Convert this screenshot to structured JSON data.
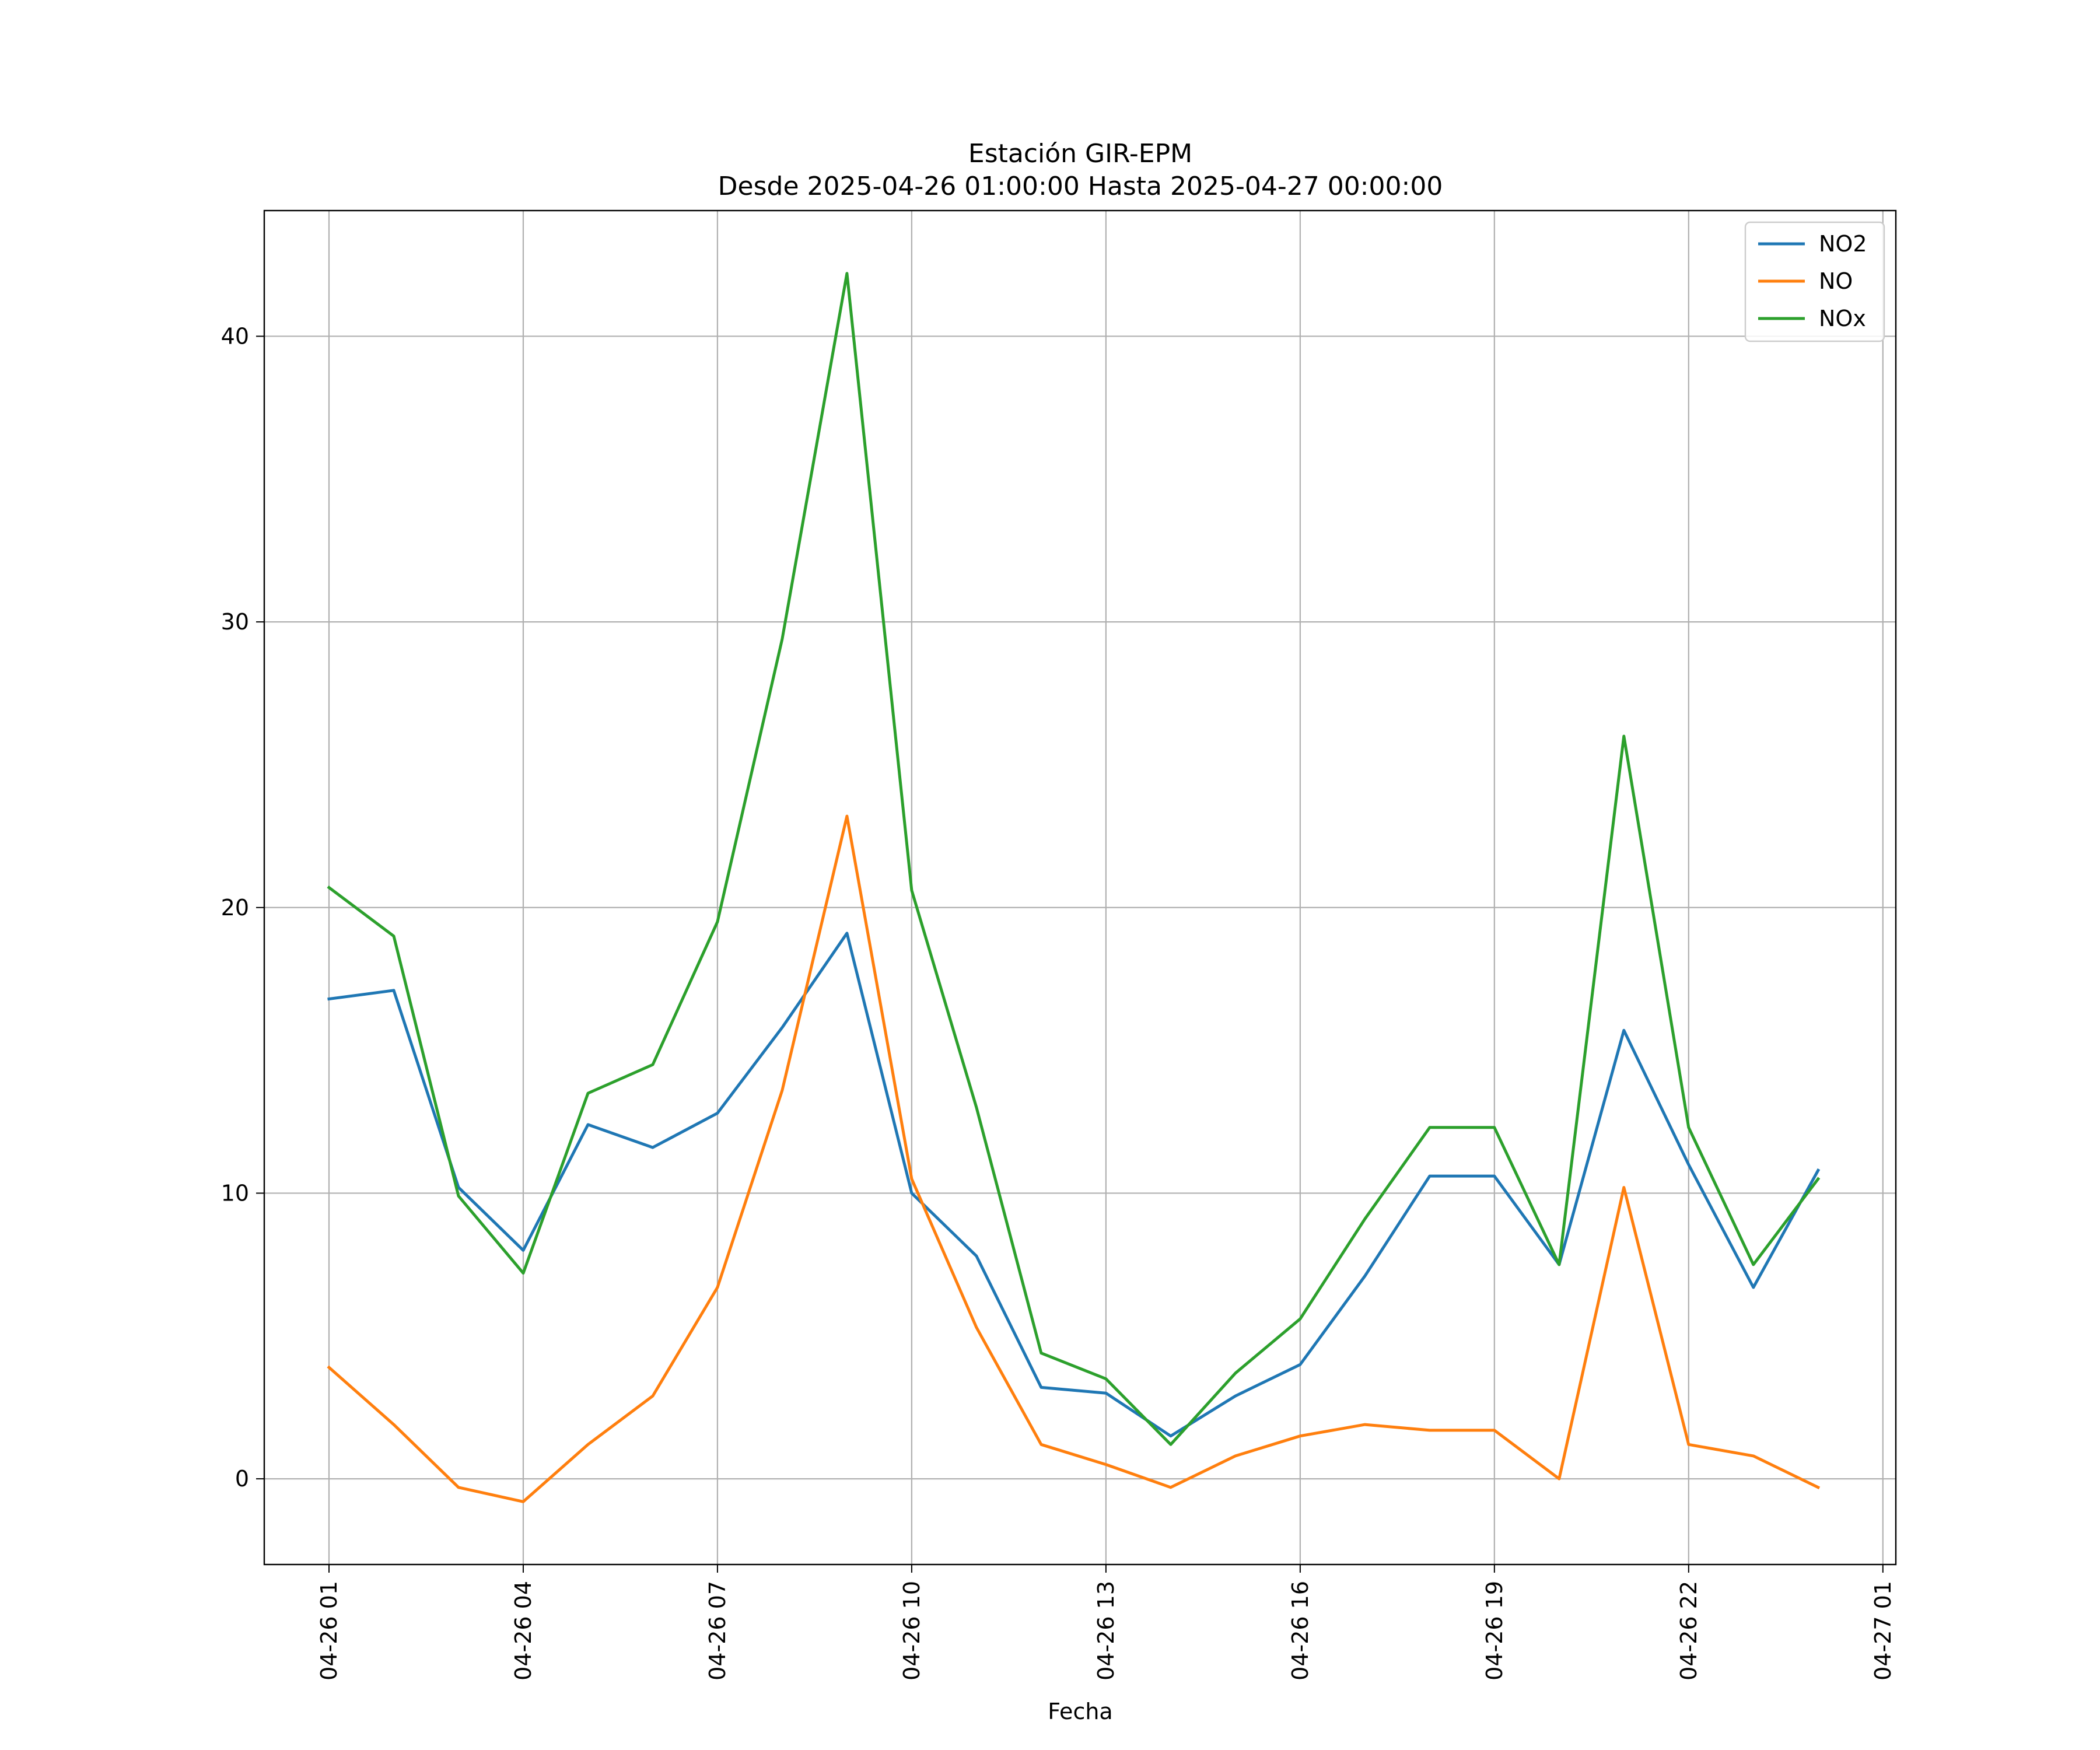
{
  "chart_data": {
    "type": "line",
    "title": "Estación GIR-EPM",
    "subtitle": "Desde 2025-04-26 01:00:00 Hasta 2025-04-27 00:00:00",
    "xlabel": "Fecha",
    "ylabel": "",
    "grid": true,
    "legend_position": "top-right",
    "x": [
      "2025-04-26 01:00",
      "2025-04-26 02:00",
      "2025-04-26 03:00",
      "2025-04-26 04:00",
      "2025-04-26 05:00",
      "2025-04-26 06:00",
      "2025-04-26 07:00",
      "2025-04-26 08:00",
      "2025-04-26 09:00",
      "2025-04-26 10:00",
      "2025-04-26 11:00",
      "2025-04-26 12:00",
      "2025-04-26 13:00",
      "2025-04-26 14:00",
      "2025-04-26 15:00",
      "2025-04-26 16:00",
      "2025-04-26 17:00",
      "2025-04-26 18:00",
      "2025-04-26 19:00",
      "2025-04-26 20:00",
      "2025-04-26 21:00",
      "2025-04-26 22:00",
      "2025-04-26 23:00",
      "2025-04-27 00:00"
    ],
    "xlim": [
      "2025-04-26 00:00",
      "2025-04-27 01:12"
    ],
    "ylim": [
      -3,
      44.4
    ],
    "x_ticks": [
      {
        "value": "2025-04-26 01:00",
        "label": "04-26 01"
      },
      {
        "value": "2025-04-26 04:00",
        "label": "04-26 04"
      },
      {
        "value": "2025-04-26 07:00",
        "label": "04-26 07"
      },
      {
        "value": "2025-04-26 10:00",
        "label": "04-26 10"
      },
      {
        "value": "2025-04-26 13:00",
        "label": "04-26 13"
      },
      {
        "value": "2025-04-26 16:00",
        "label": "04-26 16"
      },
      {
        "value": "2025-04-26 19:00",
        "label": "04-26 19"
      },
      {
        "value": "2025-04-26 22:00",
        "label": "04-26 22"
      },
      {
        "value": "2025-04-27 01:00",
        "label": "04-27 01"
      }
    ],
    "y_ticks": [
      0,
      10,
      20,
      30,
      40
    ],
    "series": [
      {
        "name": "NO2",
        "color": "#1f77b4",
        "values": [
          16.8,
          17.1,
          10.2,
          8.0,
          12.4,
          11.6,
          12.8,
          15.8,
          19.1,
          10.0,
          7.8,
          3.2,
          3.0,
          1.5,
          2.9,
          4.0,
          7.1,
          10.6,
          10.6,
          7.5,
          15.7,
          11.0,
          6.7,
          10.8
        ]
      },
      {
        "name": "NO",
        "color": "#ff7f0e",
        "values": [
          3.9,
          1.9,
          -0.3,
          -0.8,
          1.2,
          2.9,
          6.7,
          13.6,
          23.2,
          10.5,
          5.3,
          1.2,
          0.5,
          -0.3,
          0.8,
          1.5,
          1.9,
          1.7,
          1.7,
          0.0,
          10.2,
          1.2,
          0.8,
          -0.3
        ]
      },
      {
        "name": "NOx",
        "color": "#2ca02c",
        "values": [
          20.7,
          19.0,
          9.9,
          7.2,
          13.5,
          14.5,
          19.5,
          29.4,
          42.2,
          20.6,
          13.0,
          4.4,
          3.5,
          1.2,
          3.7,
          5.6,
          9.1,
          12.3,
          12.3,
          7.5,
          26.0,
          12.3,
          7.5,
          10.5
        ]
      }
    ]
  }
}
